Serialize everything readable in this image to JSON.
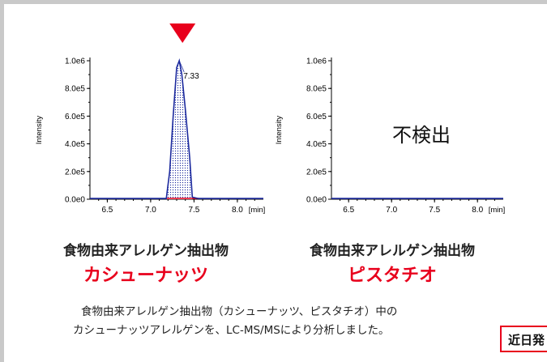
{
  "chart_data": [
    {
      "type": "line",
      "title": "",
      "xlabel": "[min]",
      "ylabel": "Intensity",
      "xlim": [
        6.3,
        8.3
      ],
      "ylim": [
        0,
        1000000.0
      ],
      "x_ticks": [
        "6.5",
        "7.0",
        "7.5",
        "8.0"
      ],
      "y_ticks": [
        "0.0e0",
        "2.0e5",
        "4.0e5",
        "6.0e5",
        "8.0e5",
        "1.0e6"
      ],
      "peak_label": "7.33",
      "x": [
        6.3,
        7.0,
        7.18,
        7.22,
        7.26,
        7.3,
        7.33,
        7.36,
        7.4,
        7.45,
        7.48,
        7.55,
        8.3
      ],
      "y": [
        5000,
        5000,
        5000,
        200000,
        600000,
        950000,
        1000000,
        900000,
        650000,
        300000,
        15000,
        5000,
        5000
      ],
      "marker_color": "#e8001c",
      "line_color": "#1c2a9e"
    },
    {
      "type": "line",
      "title": "",
      "xlabel": "[min]",
      "ylabel": "Intensity",
      "xlim": [
        6.3,
        8.3
      ],
      "ylim": [
        0,
        1000000.0
      ],
      "x_ticks": [
        "6.5",
        "7.0",
        "7.5",
        "8.0"
      ],
      "y_ticks": [
        "0.0e0",
        "2.0e5",
        "4.0e5",
        "6.0e5",
        "8.0e5",
        "1.0e6"
      ],
      "annotation": "不検出",
      "x": [
        6.3,
        8.3
      ],
      "y": [
        5000,
        5000
      ],
      "line_color": "#1c2a9e"
    }
  ],
  "captions": {
    "left_line1": "食物由来アレルゲン抽出物",
    "left_line2": "カシューナッツ",
    "right_line1": "食物由来アレルゲン抽出物",
    "right_line2": "ピスタチオ"
  },
  "description": {
    "line1": "食物由来アレルゲン抽出物（カシューナッツ、ピスタチオ）中の",
    "line2": "カシューナッツアレルゲンを、LC-MS/MSにより分析しました。"
  },
  "badge": "近日発"
}
